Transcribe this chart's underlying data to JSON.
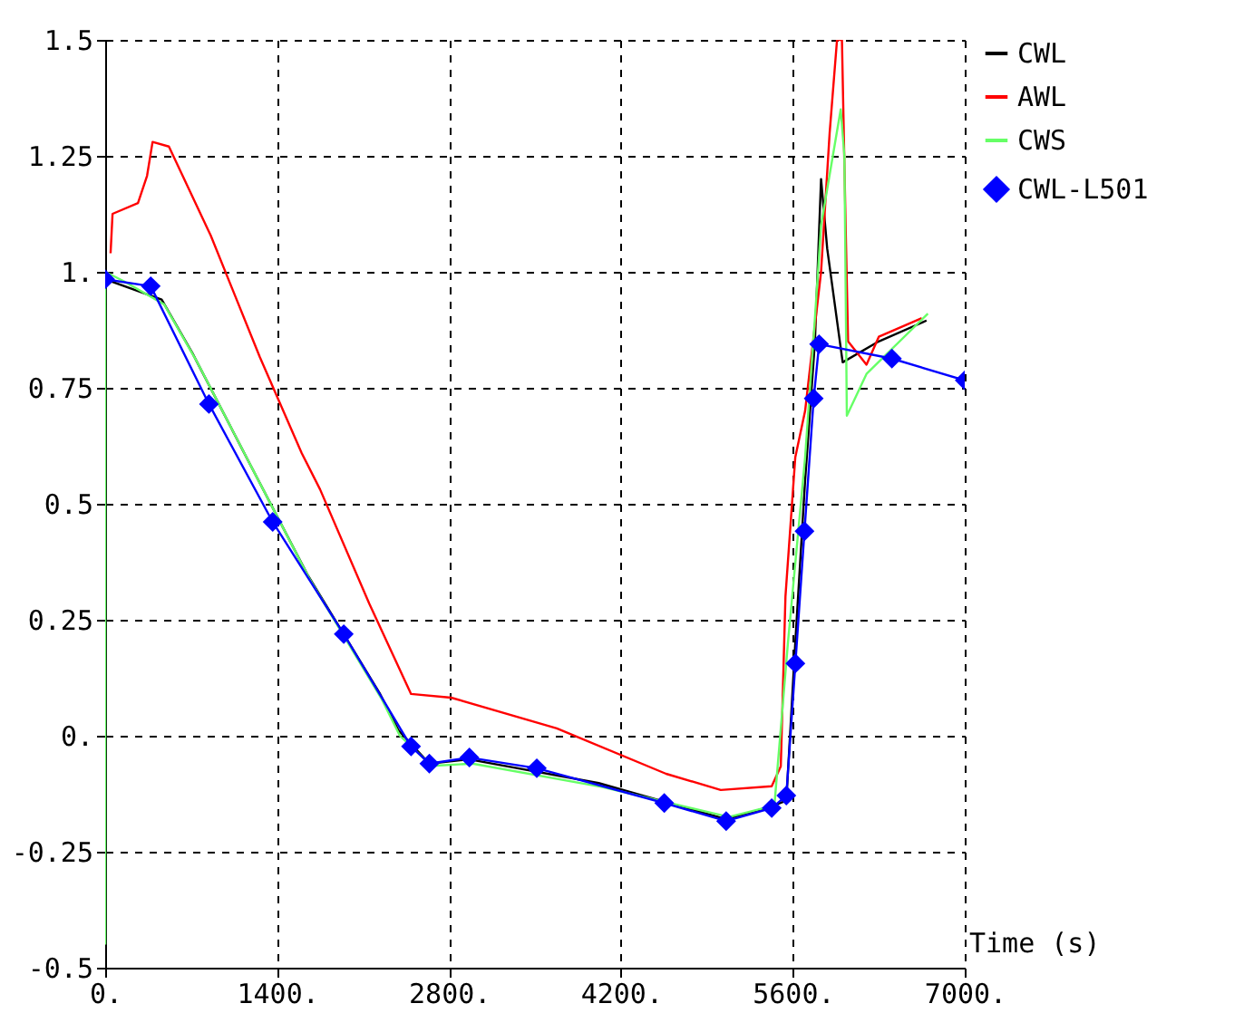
{
  "chart_data": {
    "type": "line",
    "xlabel": "Time (s)",
    "xlim": [
      0,
      7000
    ],
    "ylim": [
      -0.5,
      1.5
    ],
    "xticks": [
      {
        "value": 0,
        "label": "0."
      },
      {
        "value": 1400,
        "label": "1400."
      },
      {
        "value": 2800,
        "label": "2800."
      },
      {
        "value": 4200,
        "label": "4200."
      },
      {
        "value": 5600,
        "label": "5600."
      },
      {
        "value": 7000,
        "label": "7000."
      }
    ],
    "yticks": [
      -0.5,
      -0.25,
      {
        "value": 0,
        "label": "0."
      },
      0.25,
      0.5,
      0.75,
      {
        "value": 1,
        "label": "1."
      },
      1.25,
      1.5
    ],
    "grid": true,
    "legend": "right",
    "line_style": "solid",
    "series": [
      {
        "name": "CWL",
        "color": "#000000",
        "marker": "none",
        "x": [
          0,
          460,
          712,
          1186,
          1646,
          2239,
          2388,
          2640,
          2966,
          4019,
          5057,
          5428,
          5547,
          5620,
          5700,
          5780,
          5830,
          5880,
          6006,
          6300,
          6689
        ],
        "values": [
          0.984,
          0.94,
          0.824,
          0.582,
          0.348,
          0.09,
          0.012,
          -0.06,
          -0.051,
          -0.102,
          -0.18,
          -0.152,
          -0.14,
          0.2,
          0.55,
          0.85,
          1.2,
          1.05,
          0.805,
          0.85,
          0.895
        ]
      },
      {
        "name": "AWL",
        "color": "#ff0000",
        "marker": "none",
        "x": [
          44,
          60,
          267,
          341,
          386,
          519,
          860,
          1260,
          1601,
          1750,
          2150,
          2491,
          2818,
          3678,
          4568,
          5013,
          5428,
          5502,
          5540,
          5620,
          5700,
          5830,
          5900,
          5960,
          6000,
          6030,
          6050,
          6200,
          6300,
          6650
        ],
        "values": [
          1.04,
          1.125,
          1.148,
          1.207,
          1.28,
          1.27,
          1.078,
          0.816,
          0.609,
          0.531,
          0.285,
          0.09,
          0.082,
          0.016,
          -0.082,
          -0.117,
          -0.109,
          -0.066,
          0.3,
          0.6,
          0.7,
          1.0,
          1.3,
          1.5,
          1.5,
          1.1,
          0.85,
          0.8,
          0.86,
          0.9
        ]
      },
      {
        "name": "CWS",
        "color": "#66ff66",
        "marker": "none",
        "x": [
          0,
          0,
          150,
          480,
          740,
          1200,
          1660,
          2250,
          2400,
          2660,
          2990,
          4040,
          5080,
          5450,
          5560,
          5700,
          5780,
          5830,
          5990,
          6020,
          6040,
          6200,
          6700
        ],
        "values": [
          -0.45,
          1.0,
          0.98,
          0.93,
          0.81,
          0.575,
          0.34,
          0.08,
          0.0,
          -0.065,
          -0.06,
          -0.11,
          -0.175,
          -0.15,
          0.2,
          0.6,
          0.9,
          1.1,
          1.35,
          1.25,
          0.69,
          0.78,
          0.91
        ]
      },
      {
        "name": "CWL-L501",
        "color": "#0000ff",
        "marker": "diamond",
        "x": [
          0,
          371,
          845,
          1364,
          1943,
          2491,
          2640,
          2966,
          3515,
          4553,
          5057,
          5428,
          5547,
          5621,
          5695,
          5770,
          5814,
          6407,
          7000
        ],
        "values": [
          0.984,
          0.969,
          0.715,
          0.461,
          0.219,
          -0.023,
          -0.06,
          -0.047,
          -0.07,
          -0.145,
          -0.184,
          -0.156,
          -0.129,
          0.156,
          0.441,
          0.727,
          0.844,
          0.813,
          0.766
        ]
      }
    ]
  }
}
